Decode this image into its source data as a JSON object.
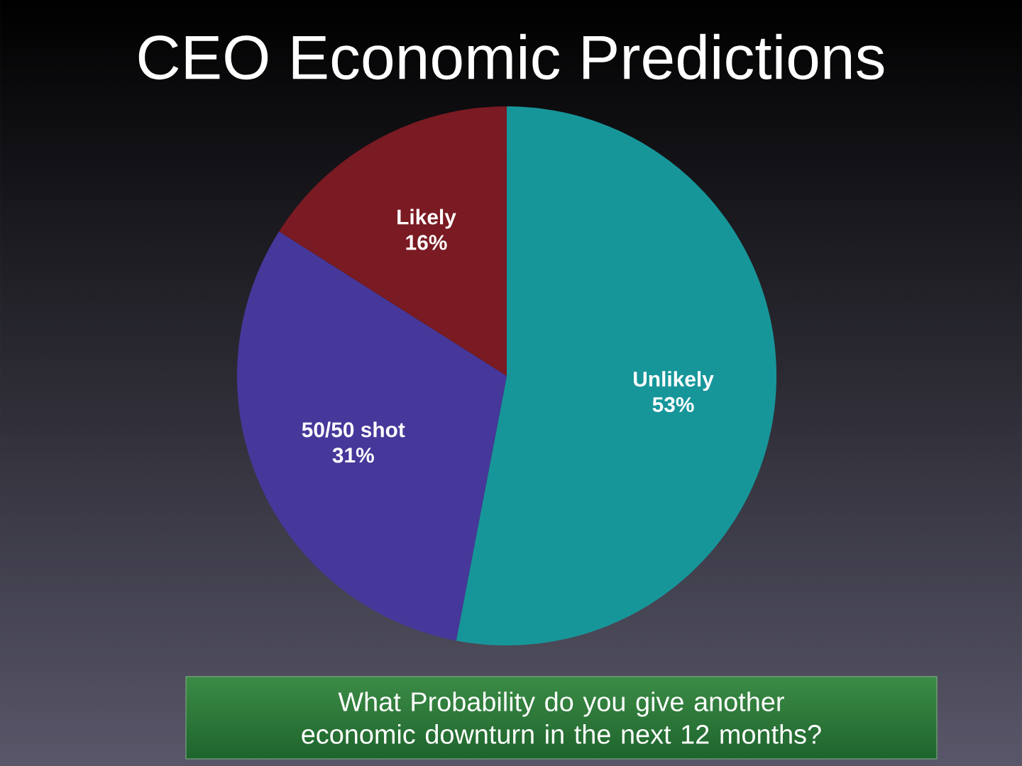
{
  "chart_data": {
    "type": "pie",
    "title": "CEO Economic Predictions",
    "categories": [
      "Unlikely",
      "50/50 shot",
      "Likely"
    ],
    "values": [
      53,
      31,
      16
    ],
    "value_labels": [
      "53%",
      "31%",
      "16%"
    ],
    "colors": [
      "#17969a",
      "#46389a",
      "#7a1a22"
    ],
    "annotations": [
      "What Probability do you give another economic downturn in the next 12 months?"
    ]
  }
}
